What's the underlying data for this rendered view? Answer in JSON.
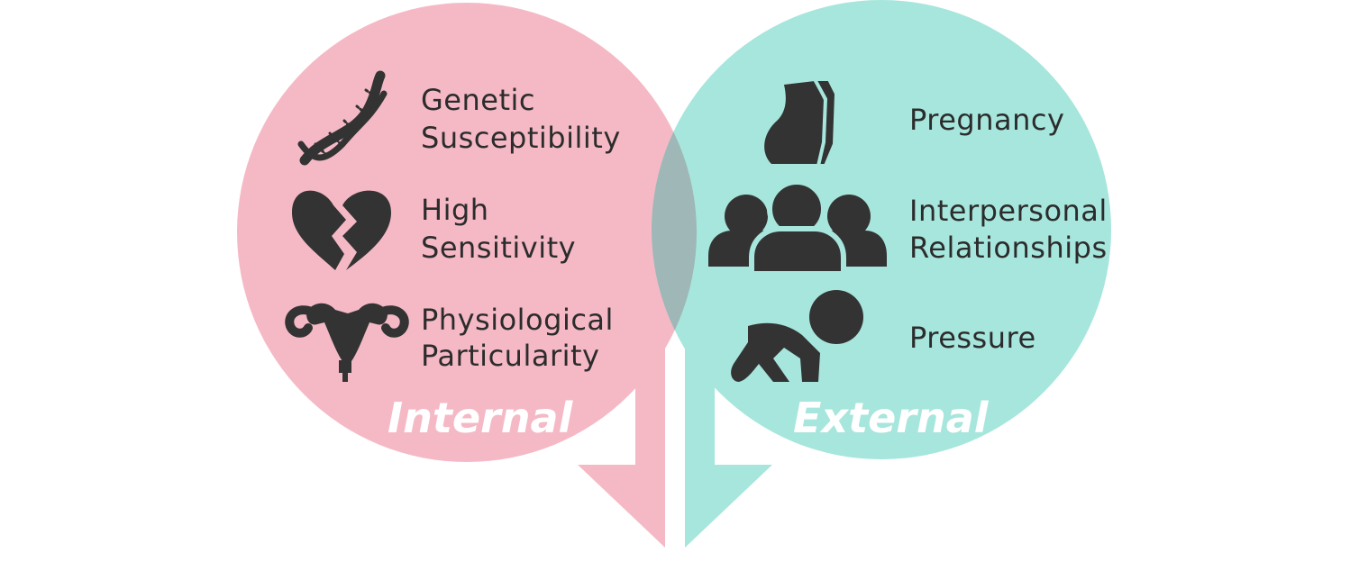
{
  "colors": {
    "internal": "#f5b9c6",
    "external": "#a6e6dc",
    "overlap": "#9fb7b6",
    "icon": "#333333",
    "label": "#2c2c2c",
    "title": "#ffffff"
  },
  "internal": {
    "title": "Internal",
    "factors": [
      {
        "icon": "dna-icon",
        "line1": "Genetic",
        "line2": "Susceptibility"
      },
      {
        "icon": "broken-heart-icon",
        "line1": "High",
        "line2": "Sensitivity"
      },
      {
        "icon": "uterus-icon",
        "line1": "Physiological",
        "line2": "Particularity"
      }
    ]
  },
  "external": {
    "title": "External",
    "factors": [
      {
        "icon": "pregnant-woman-icon",
        "line1": "Pregnancy",
        "line2": ""
      },
      {
        "icon": "group-people-icon",
        "line1": "Interpersonal",
        "line2": "Relationships"
      },
      {
        "icon": "crouching-person-icon",
        "line1": "Pressure",
        "line2": ""
      }
    ]
  }
}
